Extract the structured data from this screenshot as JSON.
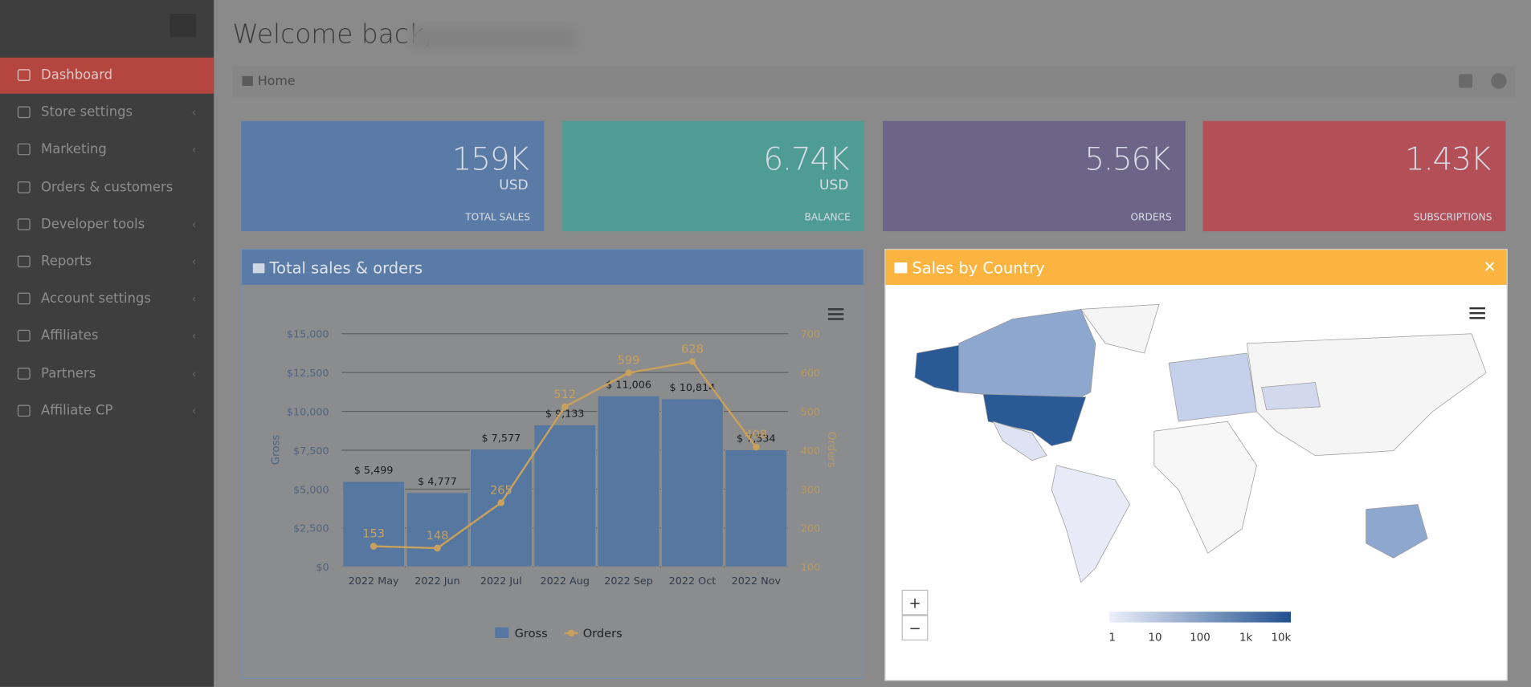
{
  "sidebar": {
    "items": [
      "Dashboard",
      "Store settings",
      "Marketing",
      "Orders & customers",
      "Developer tools",
      "Reports",
      "Account settings",
      "Affiliates",
      "Partners",
      "Affiliate CP"
    ]
  },
  "header": {
    "greeting": "Welcome back,"
  },
  "breadcrumb": {
    "home": "Home"
  },
  "stats": [
    {
      "value": "159K",
      "unit": "USD",
      "label": "TOTAL SALES"
    },
    {
      "value": "6.74K",
      "unit": "USD",
      "label": "BALANCE"
    },
    {
      "value": "5.56K",
      "label": "ORDERS"
    },
    {
      "value": "1.43K",
      "label": "SUBSCRIPTIONS"
    }
  ],
  "chart_data": {
    "type": "bar-line",
    "title": "Total sales & orders",
    "categories": [
      "2022 May",
      "2022 Jun",
      "2022 Jul",
      "2022 Aug",
      "2022 Sep",
      "2022 Oct",
      "2022 Nov"
    ],
    "series": [
      {
        "name": "Gross",
        "color": "#56779f",
        "values": [
          5499,
          4777,
          7577,
          9133,
          11006,
          10814,
          7534
        ],
        "value_labels": [
          "$ 5,499",
          "$ 4,777",
          "$ 7,577",
          "$ 9,133",
          "$ 11,006",
          "$ 10,814",
          "$ 7,534"
        ]
      },
      {
        "name": "Orders",
        "color": "#c9a05c",
        "axis": "y2",
        "values": [
          153,
          148,
          265,
          512,
          599,
          628,
          408
        ]
      }
    ],
    "y_label": "Gross",
    "y2_label": "Orders",
    "ylim": [
      0,
      15000
    ],
    "yticks": [
      {
        "value": 0,
        "label": "$0"
      },
      {
        "value": 2500,
        "label": "$2,500"
      },
      {
        "value": 5000,
        "label": "$5,000"
      },
      {
        "value": 7500,
        "label": "$7,500"
      },
      {
        "value": 10000,
        "label": "$10,000"
      },
      {
        "value": 12500,
        "label": "$12,500"
      },
      {
        "value": 15000,
        "label": "$15,000"
      }
    ],
    "y2lim": [
      100,
      700
    ],
    "y2ticks": [
      100,
      200,
      300,
      400,
      500,
      600,
      700
    ],
    "grid": true
  },
  "map": {
    "title": "Sales by Country",
    "legend_labels": [
      "1",
      "10",
      "100",
      "1k",
      "10k"
    ],
    "zoom_in": "+",
    "zoom_out": "−"
  }
}
